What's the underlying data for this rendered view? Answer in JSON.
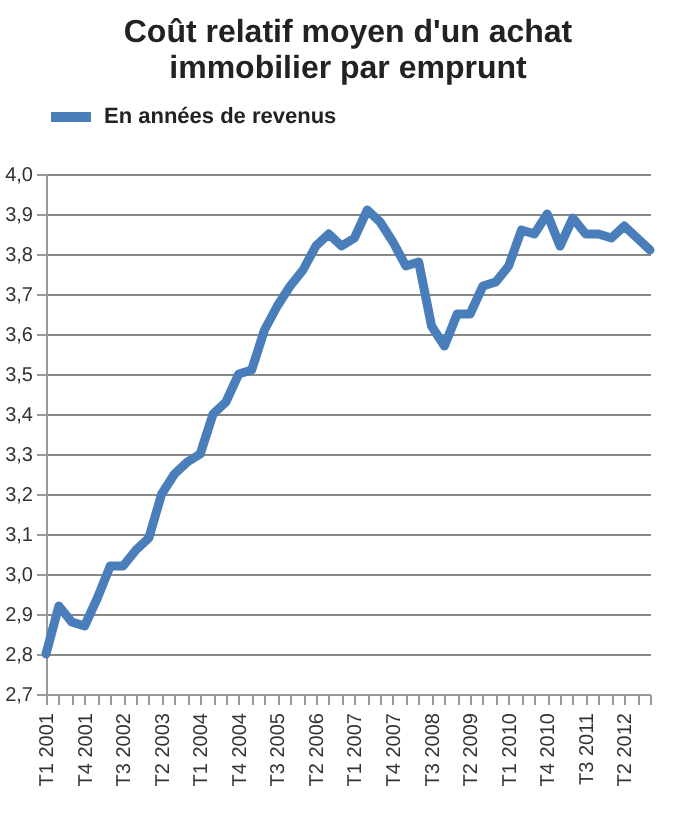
{
  "chart_data": {
    "type": "line",
    "title": [
      "Coût relatif moyen d'un achat",
      "immobilier par emprunt"
    ],
    "categories": [
      "T1 2001",
      null,
      null,
      "T4 2001",
      null,
      null,
      "T3 2002",
      null,
      null,
      "T2 2003",
      null,
      null,
      "T1 2004",
      null,
      null,
      "T4 2004",
      null,
      null,
      "T3 2005",
      null,
      null,
      "T2 2006",
      null,
      null,
      "T1 2007",
      null,
      null,
      "T4 2007",
      null,
      null,
      "T3 2008",
      null,
      null,
      "T2 2009",
      null,
      null,
      "T1 2010",
      null,
      null,
      "T4 2010",
      null,
      null,
      "T3 2011",
      null,
      null,
      "T2 2012",
      null,
      null
    ],
    "series": [
      {
        "name": "En années de revenus",
        "color": "#4a7ebb",
        "values": [
          2.8,
          2.92,
          2.88,
          2.87,
          2.94,
          3.02,
          3.02,
          3.06,
          3.09,
          3.2,
          3.25,
          3.28,
          3.3,
          3.4,
          3.43,
          3.5,
          3.51,
          3.61,
          3.67,
          3.72,
          3.76,
          3.82,
          3.85,
          3.82,
          3.84,
          3.91,
          3.88,
          3.83,
          3.77,
          3.78,
          3.62,
          3.57,
          3.65,
          3.65,
          3.72,
          3.73,
          3.77,
          3.86,
          3.85,
          3.9,
          3.82,
          3.89,
          3.85,
          3.85,
          3.84,
          3.87,
          3.84,
          3.81
        ]
      }
    ],
    "ylim": [
      2.7,
      4.0
    ],
    "yticks": [
      {
        "value": 2.7,
        "label": "2,7"
      },
      {
        "value": 2.8,
        "label": "2,8"
      },
      {
        "value": 2.9,
        "label": "2,9"
      },
      {
        "value": 3.0,
        "label": "3,0"
      },
      {
        "value": 3.1,
        "label": "3,1"
      },
      {
        "value": 3.2,
        "label": "3,2"
      },
      {
        "value": 3.3,
        "label": "3,3"
      },
      {
        "value": 3.4,
        "label": "3,4"
      },
      {
        "value": 3.5,
        "label": "3,5"
      },
      {
        "value": 3.6,
        "label": "3,6"
      },
      {
        "value": 3.7,
        "label": "3,7"
      },
      {
        "value": 3.8,
        "label": "3,8"
      },
      {
        "value": 3.9,
        "label": "3,9"
      },
      {
        "value": 4.0,
        "label": "4,0"
      }
    ],
    "grid": "y",
    "legend": "top",
    "marker": "none",
    "line_style": "solid"
  }
}
